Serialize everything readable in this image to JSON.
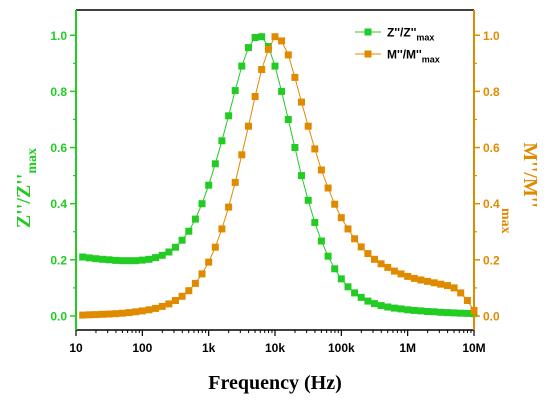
{
  "chart_data": {
    "type": "scatter",
    "xlabel": "Frequency (Hz)",
    "x_scale": "log",
    "xlim": [
      10,
      10000000
    ],
    "x_ticks": [
      {
        "value": 10,
        "label": "10"
      },
      {
        "value": 100,
        "label": "100"
      },
      {
        "value": 1000,
        "label": "1k"
      },
      {
        "value": 10000,
        "label": "10k"
      },
      {
        "value": 100000,
        "label": "100k"
      },
      {
        "value": 1000000,
        "label": "1M"
      },
      {
        "value": 10000000,
        "label": "10M"
      }
    ],
    "y_left": {
      "label_main": "Z''/Z''",
      "label_sub": "max",
      "color": "#22cc22",
      "ylim": [
        -0.05,
        1.09
      ],
      "ticks": [
        "0.0",
        "0.2",
        "0.4",
        "0.6",
        "0.8",
        "1.0"
      ]
    },
    "y_right": {
      "label_main": "M''/M''",
      "label_sub": "max",
      "color": "#e08a00",
      "ylim": [
        -0.05,
        1.09
      ],
      "ticks": [
        "0.0",
        "0.2",
        "0.4",
        "0.6",
        "0.8",
        "1.0"
      ]
    },
    "legend": {
      "placement": "top-right",
      "entries": [
        {
          "main": "Z''/Z''",
          "sub": "max",
          "series": 0
        },
        {
          "main": "M''/M''",
          "sub": "max",
          "series": 1
        }
      ]
    },
    "x": [
      12.6,
      15.8,
      19.9,
      25.1,
      31.6,
      39.8,
      50.1,
      63.1,
      79.4,
      100,
      125.9,
      158.5,
      199.5,
      251.2,
      316.2,
      398.1,
      501.2,
      631,
      794.3,
      1000,
      1258.9,
      1584.9,
      1995.3,
      2511.9,
      3162.3,
      3981.1,
      5011.9,
      6309.6,
      7943.3,
      10000,
      12589,
      15849,
      19953,
      25119,
      31623,
      39811,
      50119,
      63096,
      79433,
      100000,
      125893,
      158489,
      199526,
      251189,
      316228,
      398107,
      501187,
      630957,
      794328,
      1000000,
      1258925,
      1584893,
      1995262,
      2511886,
      3162278,
      3981072,
      5011872,
      6309573,
      7943282,
      10000000
    ],
    "series": [
      {
        "color": "#22cc22",
        "values": [
          0.21,
          0.207,
          0.204,
          0.202,
          0.2,
          0.198,
          0.197,
          0.197,
          0.197,
          0.199,
          0.202,
          0.208,
          0.216,
          0.228,
          0.245,
          0.27,
          0.302,
          0.345,
          0.4,
          0.466,
          0.542,
          0.624,
          0.713,
          0.803,
          0.89,
          0.956,
          0.992,
          0.995,
          0.96,
          0.89,
          0.8,
          0.7,
          0.6,
          0.5,
          0.412,
          0.333,
          0.267,
          0.213,
          0.168,
          0.132,
          0.104,
          0.082,
          0.066,
          0.053,
          0.044,
          0.037,
          0.032,
          0.028,
          0.025,
          0.022,
          0.02,
          0.018,
          0.016,
          0.015,
          0.013,
          0.012,
          0.011,
          0.01,
          0.009,
          0.008
        ]
      },
      {
        "color": "#e08a00",
        "values": [
          0.003,
          0.004,
          0.005,
          0.006,
          0.007,
          0.008,
          0.01,
          0.012,
          0.015,
          0.018,
          0.022,
          0.027,
          0.034,
          0.043,
          0.055,
          0.07,
          0.09,
          0.116,
          0.15,
          0.192,
          0.245,
          0.31,
          0.388,
          0.476,
          0.574,
          0.676,
          0.782,
          0.878,
          0.95,
          0.995,
          0.98,
          0.93,
          0.85,
          0.762,
          0.676,
          0.595,
          0.52,
          0.456,
          0.398,
          0.35,
          0.31,
          0.275,
          0.246,
          0.222,
          0.202,
          0.186,
          0.173,
          0.16,
          0.15,
          0.141,
          0.134,
          0.128,
          0.123,
          0.118,
          0.113,
          0.108,
          0.1,
          0.082,
          0.055,
          0.02
        ]
      }
    ]
  }
}
